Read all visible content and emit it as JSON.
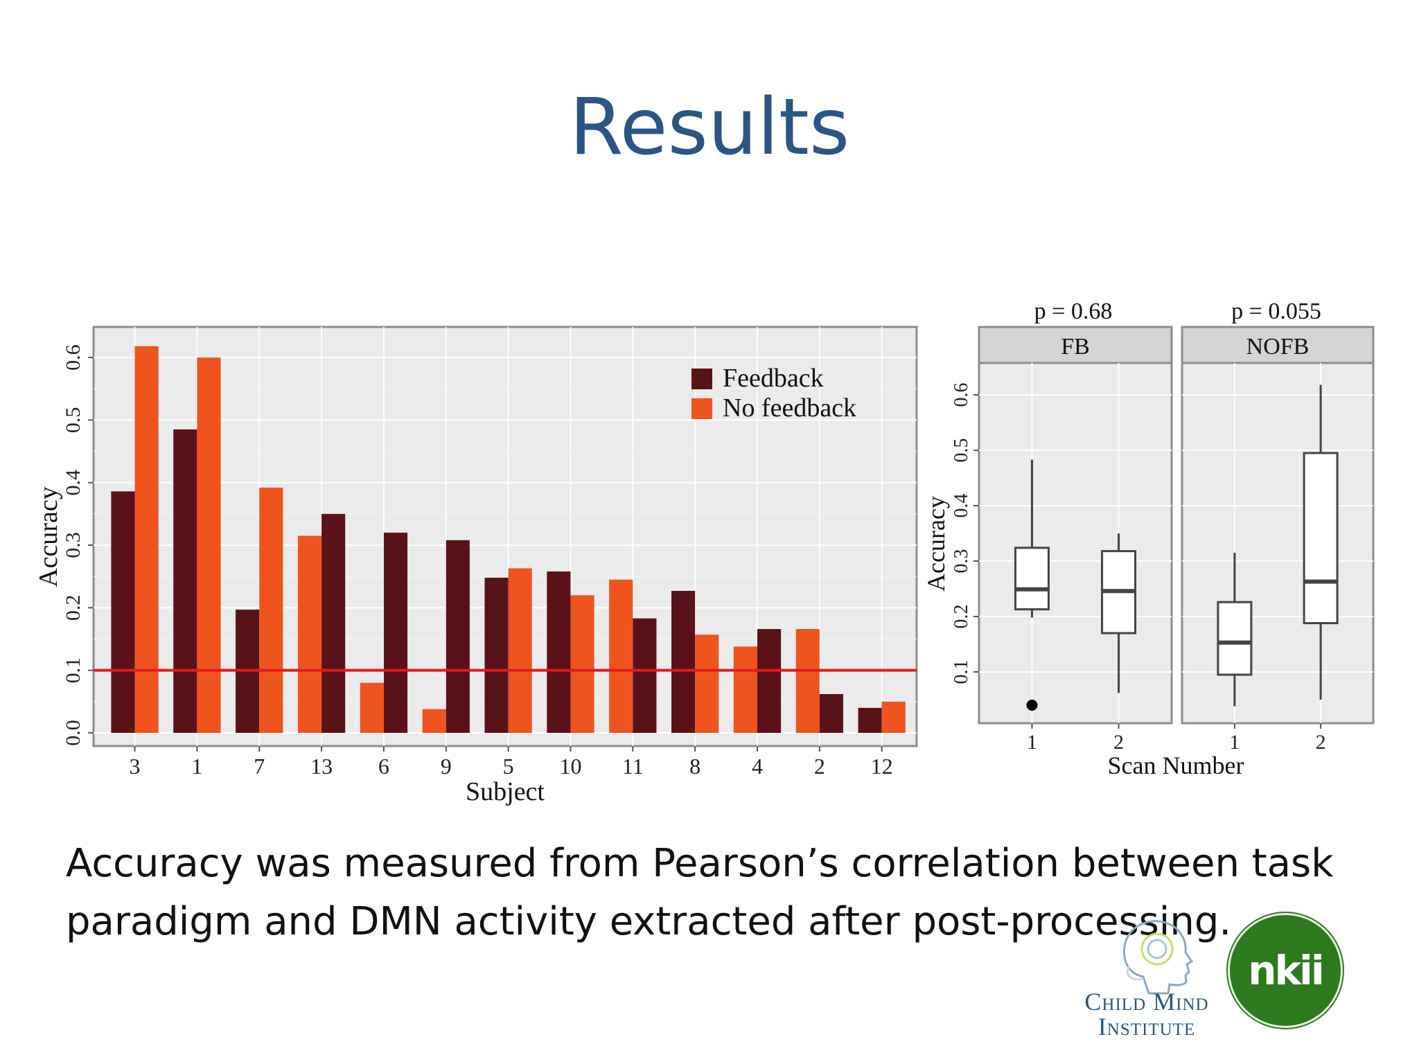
{
  "slide": {
    "title": "Results",
    "caption_lines": [
      "Accuracy was measured from Pearson’s correlation between task",
      "paradigm and DMN activity extracted after post-processing."
    ],
    "logos": {
      "cmi_line1": "Child Mind",
      "cmi_line2": "Institute",
      "nkii": "nkii"
    }
  },
  "chart_data": [
    {
      "type": "bar",
      "xlabel": "Subject",
      "ylabel": "Accuracy",
      "ylim": [
        0,
        0.65
      ],
      "yticks": [
        0.0,
        0.1,
        0.2,
        0.3,
        0.4,
        0.5,
        0.6
      ],
      "categories": [
        "3",
        "1",
        "7",
        "13",
        "6",
        "9",
        "5",
        "10",
        "11",
        "8",
        "4",
        "2",
        "12"
      ],
      "series": [
        {
          "name": "Feedback",
          "color": "#5a1219",
          "values": [
            0.386,
            0.485,
            0.197,
            0.35,
            0.32,
            0.308,
            0.248,
            0.258,
            0.183,
            0.227,
            0.166,
            0.062,
            0.04
          ]
        },
        {
          "name": "No feedback",
          "color": "#ef541e",
          "values": [
            0.618,
            0.6,
            0.392,
            0.315,
            0.08,
            0.038,
            0.263,
            0.22,
            0.245,
            0.157,
            0.138,
            0.166,
            0.05
          ]
        }
      ],
      "bar_order": [
        [
          "Feedback",
          "No feedback"
        ],
        [
          "Feedback",
          "No feedback"
        ],
        [
          "Feedback",
          "No feedback"
        ],
        [
          "No feedback",
          "Feedback"
        ],
        [
          "No feedback",
          "Feedback"
        ],
        [
          "No feedback",
          "Feedback"
        ],
        [
          "Feedback",
          "No feedback"
        ],
        [
          "Feedback",
          "No feedback"
        ],
        [
          "No feedback",
          "Feedback"
        ],
        [
          "Feedback",
          "No feedback"
        ],
        [
          "No feedback",
          "Feedback"
        ],
        [
          "No feedback",
          "Feedback"
        ],
        [
          "Feedback",
          "No feedback"
        ]
      ],
      "reference_line": {
        "value": 0.1,
        "color": "#e31a1c"
      },
      "legend": {
        "position": "top-right"
      },
      "grid": true
    },
    {
      "type": "box",
      "xlabel": "Scan Number",
      "ylabel": "Accuracy",
      "ylim": [
        0.0,
        0.65
      ],
      "yticks": [
        0.1,
        0.2,
        0.3,
        0.4,
        0.5,
        0.6
      ],
      "grid": true,
      "panels": [
        {
          "label": "FB",
          "annotation": "p = 0.68",
          "groups": [
            {
              "x": "1",
              "min": 0.198,
              "q1": 0.213,
              "median": 0.249,
              "q3": 0.324,
              "max": 0.483,
              "outliers": [
                0.04
              ]
            },
            {
              "x": "2",
              "min": 0.062,
              "q1": 0.17,
              "median": 0.246,
              "q3": 0.318,
              "max": 0.35,
              "outliers": []
            }
          ]
        },
        {
          "label": "NOFB",
          "annotation": "p = 0.055",
          "groups": [
            {
              "x": "1",
              "min": 0.038,
              "q1": 0.095,
              "median": 0.153,
              "q3": 0.226,
              "max": 0.315,
              "outliers": []
            },
            {
              "x": "2",
              "min": 0.05,
              "q1": 0.188,
              "median": 0.263,
              "q3": 0.495,
              "max": 0.618,
              "outliers": []
            }
          ]
        }
      ]
    }
  ]
}
